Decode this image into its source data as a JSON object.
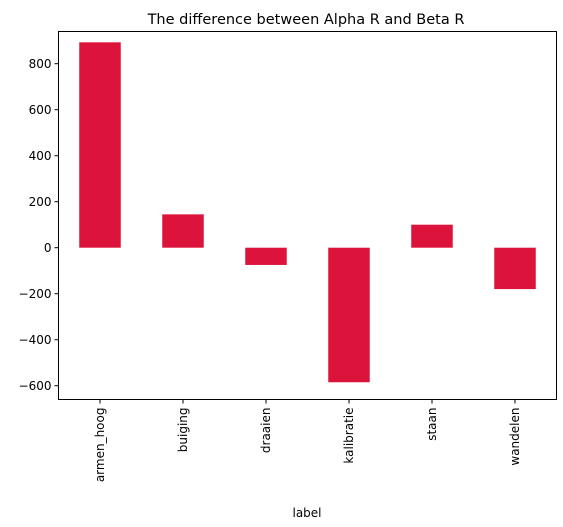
{
  "chart_data": {
    "type": "bar",
    "title": "The difference between Alpha R and Beta R",
    "xlabel": "label",
    "ylabel": "",
    "categories": [
      "armen_hoog",
      "buiging",
      "draaien",
      "kalibratie",
      "staan",
      "wandelen"
    ],
    "values": [
      893,
      145,
      -75,
      -585,
      100,
      -180
    ],
    "ylim": [
      -660,
      940
    ],
    "yticks": [
      -600,
      -400,
      -200,
      0,
      200,
      400,
      600,
      800
    ],
    "ytick_labels": [
      "−600",
      "−400",
      "−200",
      "0",
      "200",
      "400",
      "600",
      "800"
    ],
    "bar_color": "#dc143c",
    "grid": false,
    "legend": "none"
  }
}
